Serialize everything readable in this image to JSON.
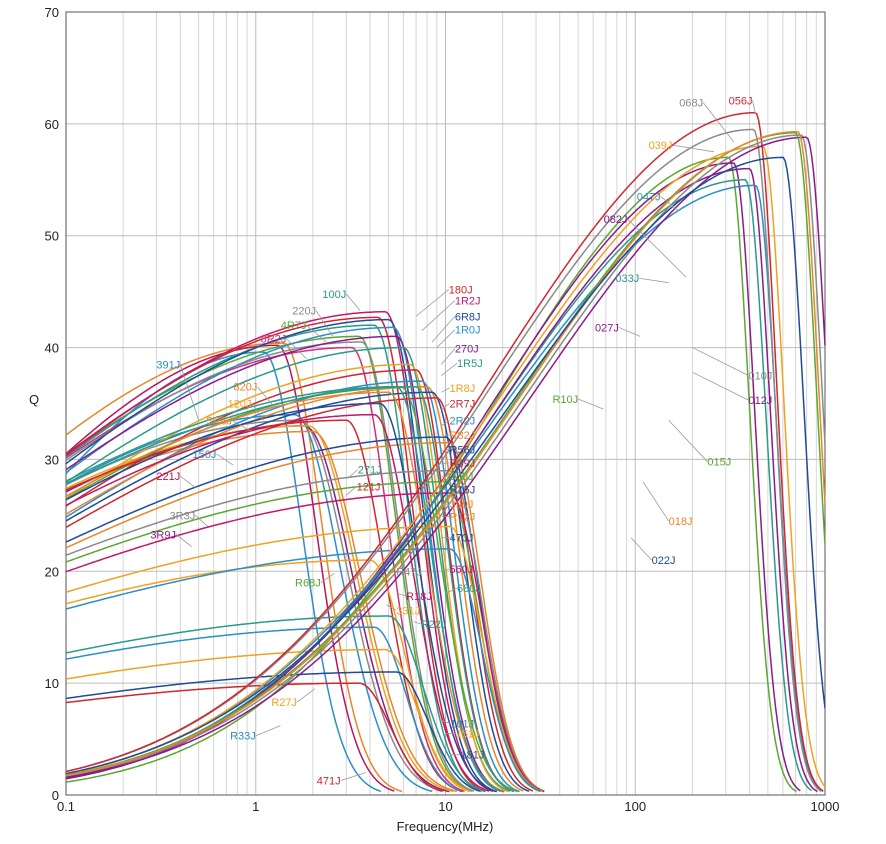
{
  "chart_data": {
    "type": "line",
    "title": "",
    "xlabel": "Frequency(MHz)",
    "ylabel": "Q",
    "x_scale": "log",
    "xlim": [
      0.1,
      1000
    ],
    "ylim": [
      0,
      70
    ],
    "grid": true,
    "x_tick_labels": [
      "0.1",
      "1",
      "10",
      "100",
      "1000"
    ],
    "x_tick_values": [
      0.1,
      1,
      10,
      100,
      1000
    ],
    "y_tick_labels": [
      "0",
      "10",
      "20",
      "30",
      "40",
      "50",
      "60",
      "70"
    ],
    "y_tick_values": [
      0,
      10,
      20,
      30,
      40,
      50,
      60,
      70
    ],
    "series": [
      {
        "name": "391J",
        "color": "#2a8fc9",
        "peak_x": 1.1,
        "peak_q": 39.6,
        "rise": 1.3,
        "fall": 5.0
      },
      {
        "name": "221J",
        "color": "#b8145a",
        "peak_x": 1.3,
        "peak_q": 40.2,
        "rise": 1.5,
        "fall": 5.0
      },
      {
        "name": "5R6J",
        "color": "#e9852b",
        "peak_x": 1.4,
        "peak_q": 40.4,
        "rise": 1.7,
        "fall": 5.0
      },
      {
        "name": "150J",
        "color": "#2a8fc9",
        "peak_x": 1.6,
        "peak_q": 34.0,
        "rise": 1.9,
        "fall": 4.2
      },
      {
        "name": "3R3J",
        "color": "#8a8a8a",
        "peak_x": 1.7,
        "peak_q": 33.5,
        "rise": 2.0,
        "fall": 4.0
      },
      {
        "name": "3R9J",
        "color": "#8b1a8b",
        "peak_x": 1.8,
        "peak_q": 33.0,
        "rise": 2.0,
        "fall": 4.0
      },
      {
        "name": "120J",
        "color": "#f0a21e",
        "peak_x": 1.9,
        "peak_q": 33.0,
        "rise": 2.1,
        "fall": 4.0
      },
      {
        "name": "820J",
        "color": "#e9852b",
        "peak_x": 2.0,
        "peak_q": 32.5,
        "rise": 2.2,
        "fall": 4.0
      },
      {
        "name": "8R2J",
        "color": "#d62e76",
        "peak_x": 3.2,
        "peak_q": 40.0,
        "rise": 2.0,
        "fall": 5.2
      },
      {
        "name": "4R7J",
        "color": "#5aa832",
        "peak_x": 3.5,
        "peak_q": 41.0,
        "rise": 2.0,
        "fall": 5.2
      },
      {
        "name": "220J",
        "color": "#8a8a8a",
        "peak_x": 3.6,
        "peak_q": 40.5,
        "rise": 2.0,
        "fall": 5.2
      },
      {
        "name": "100J",
        "color": "#2a9a8a",
        "peak_x": 4.2,
        "peak_q": 42.0,
        "rise": 2.0,
        "fall": 5.5
      },
      {
        "name": "180J",
        "color": "#d0262e",
        "peak_x": 4.4,
        "peak_q": 42.7,
        "rise": 2.0,
        "fall": 5.5
      },
      {
        "name": "1R2J",
        "color": "#c4186a",
        "peak_x": 4.8,
        "peak_q": 43.2,
        "rise": 2.0,
        "fall": 5.5
      },
      {
        "name": "6R8J",
        "color": "#1f4a9a",
        "peak_x": 5.0,
        "peak_q": 42.5,
        "rise": 2.0,
        "fall": 5.5
      },
      {
        "name": "1R0J",
        "color": "#2a8fc9",
        "peak_x": 5.3,
        "peak_q": 41.8,
        "rise": 2.0,
        "fall": 5.5
      },
      {
        "name": "270J",
        "color": "#8b1a8b",
        "peak_x": 5.5,
        "peak_q": 41.0,
        "rise": 2.1,
        "fall": 5.5
      },
      {
        "name": "1R5J",
        "color": "#2a9a8a",
        "peak_x": 6.0,
        "peak_q": 40.0,
        "rise": 2.1,
        "fall": 5.5
      },
      {
        "name": "1R8J",
        "color": "#f0a21e",
        "peak_x": 6.5,
        "peak_q": 38.5,
        "rise": 2.1,
        "fall": 6.0
      },
      {
        "name": "2R7J",
        "color": "#d0262e",
        "peak_x": 7.0,
        "peak_q": 38.0,
        "rise": 2.1,
        "fall": 6.0
      },
      {
        "name": "2R2J",
        "color": "#2a8fc9",
        "peak_x": 7.5,
        "peak_q": 37.0,
        "rise": 2.1,
        "fall": 6.0
      },
      {
        "name": "R82J",
        "color": "#e9852b",
        "peak_x": 8.0,
        "peak_q": 36.5,
        "rise": 2.2,
        "fall": 6.0
      },
      {
        "name": "R56J",
        "color": "#1f4a9a",
        "peak_x": 8.5,
        "peak_q": 36.0,
        "rise": 2.2,
        "fall": 6.0
      },
      {
        "name": "R39J",
        "color": "#d0262e",
        "peak_x": 9.0,
        "peak_q": 35.5,
        "rise": 2.2,
        "fall": 6.0
      },
      {
        "name": "330J",
        "color": "#5aa832",
        "peak_x": 5.8,
        "peak_q": 36.5,
        "rise": 2.2,
        "fall": 5.0
      },
      {
        "name": "R15J",
        "color": "#1f4a9a",
        "peak_x": 10.0,
        "peak_q": 32.0,
        "rise": 2.4,
        "fall": 6.0
      },
      {
        "name": "390J",
        "color": "#e9852b",
        "peak_x": 5.0,
        "peak_q": 36.0,
        "rise": 2.2,
        "fall": 5.0
      },
      {
        "name": "R12J",
        "color": "#e9852b",
        "peak_x": 10.5,
        "peak_q": 31.5,
        "rise": 2.4,
        "fall": 6.0
      },
      {
        "name": "470J",
        "color": "#1f4a9a",
        "peak_x": 4.5,
        "peak_q": 35.0,
        "rise": 2.2,
        "fall": 5.0
      },
      {
        "name": "560J",
        "color": "#c4186a",
        "peak_x": 4.2,
        "peak_q": 34.0,
        "rise": 2.2,
        "fall": 5.0
      },
      {
        "name": "271J",
        "color": "#2a9a8a",
        "peak_x": 5.5,
        "peak_q": 36.5,
        "rise": 2.4,
        "fall": 5.5
      },
      {
        "name": "121J",
        "color": "#d0262e",
        "peak_x": 3.0,
        "peak_q": 33.5,
        "rise": 2.3,
        "fall": 5.0
      },
      {
        "name": "680J",
        "color": "#2a9a8a",
        "peak_x": 7.0,
        "peak_q": 36.5,
        "rise": 2.5,
        "fall": 6.0
      },
      {
        "name": "R47J",
        "color": "#8a8a8a",
        "peak_x": 10.5,
        "peak_q": 29.0,
        "rise": 2.6,
        "fall": 6.0
      },
      {
        "name": "R68J",
        "color": "#5aa832",
        "peak_x": 10.0,
        "peak_q": 28.0,
        "rise": 2.6,
        "fall": 6.0
      },
      {
        "name": "R18J",
        "color": "#c4186a",
        "peak_x": 10.5,
        "peak_q": 27.0,
        "rise": 2.6,
        "fall": 6.0
      },
      {
        "name": "331J",
        "color": "#f0a21e",
        "peak_x": 4.0,
        "peak_q": 21.0,
        "rise": 2.5,
        "fall": 5.5
      },
      {
        "name": "R22J",
        "color": "#2a9a8a",
        "peak_x": 5.0,
        "peak_q": 16.0,
        "rise": 2.5,
        "fall": 5.5
      },
      {
        "name": "R27J",
        "color": "#f0a21e",
        "peak_x": 10.5,
        "peak_q": 24.0,
        "rise": 2.7,
        "fall": 6.0
      },
      {
        "name": "R33J",
        "color": "#2a8fc9",
        "peak_x": 10.5,
        "peak_q": 22.0,
        "rise": 2.7,
        "fall": 6.0
      },
      {
        "name": "101J",
        "color": "#2a8fc9",
        "peak_x": 4.2,
        "peak_q": 15.0,
        "rise": 2.5,
        "fall": 6.0
      },
      {
        "name": "151J",
        "color": "#f0a21e",
        "peak_x": 4.8,
        "peak_q": 13.0,
        "rise": 2.5,
        "fall": 6.0
      },
      {
        "name": "181J",
        "color": "#1f4a9a",
        "peak_x": 5.5,
        "peak_q": 11.0,
        "rise": 2.5,
        "fall": 6.0
      },
      {
        "name": "471J",
        "color": "#d0262e",
        "peak_x": 3.5,
        "peak_q": 10.0,
        "rise": 2.5,
        "fall": 6.0
      },
      {
        "name": "R10J",
        "color": "#5aa832",
        "peak_x": 310,
        "peak_q": 57.0,
        "rise": 1.25,
        "fall": 9.0
      },
      {
        "name": "027J",
        "color": "#8b1a8b",
        "peak_x": 330,
        "peak_q": 56.5,
        "rise": 1.3,
        "fall": 9.0
      },
      {
        "name": "033J",
        "color": "#2a9a8a",
        "peak_x": 380,
        "peak_q": 55.0,
        "rise": 1.35,
        "fall": 9.0
      },
      {
        "name": "082J",
        "color": "#8b1a8b",
        "peak_x": 400,
        "peak_q": 56.0,
        "rise": 1.35,
        "fall": 9.0
      },
      {
        "name": "047J",
        "color": "#2a8fc9",
        "peak_x": 430,
        "peak_q": 54.5,
        "rise": 1.4,
        "fall": 9.0
      },
      {
        "name": "039J",
        "color": "#f0a21e",
        "peak_x": 470,
        "peak_q": 58.0,
        "rise": 1.4,
        "fall": 9.0
      },
      {
        "name": "068J",
        "color": "#8a8a8a",
        "peak_x": 420,
        "peak_q": 59.5,
        "rise": 1.4,
        "fall": 9.0
      },
      {
        "name": "056J",
        "color": "#d0262e",
        "peak_x": 430,
        "peak_q": 61.0,
        "rise": 1.4,
        "fall": 9.0
      },
      {
        "name": "010J",
        "color": "#8a8a8a",
        "peak_x": 750,
        "peak_q": 59.0,
        "rise": 1.45,
        "fall": 9.0
      },
      {
        "name": "012J",
        "color": "#8b1a8b",
        "peak_x": 800,
        "peak_q": 58.8,
        "rise": 1.45,
        "fall": 9.0
      },
      {
        "name": "015J",
        "color": "#5aa832",
        "peak_x": 700,
        "peak_q": 59.2,
        "rise": 1.45,
        "fall": 9.0
      },
      {
        "name": "018J",
        "color": "#e9852b",
        "peak_x": 720,
        "peak_q": 59.3,
        "rise": 1.45,
        "fall": 9.0
      },
      {
        "name": "022J",
        "color": "#1f4a9a",
        "peak_x": 600,
        "peak_q": 57.0,
        "rise": 1.45,
        "fall": 9.0
      }
    ],
    "label_positions_note": "",
    "label_list": [
      {
        "name": "391J",
        "lx": 0.4,
        "ly": 38.5,
        "tx": 0.5,
        "ty": 33.5
      },
      {
        "name": "221J",
        "lx": 0.4,
        "ly": 28.5,
        "tx": 0.48,
        "ty": 27.5
      },
      {
        "name": "5R6J",
        "lx": 0.75,
        "ly": 33.5,
        "tx": 0.95,
        "ty": 32.5
      },
      {
        "name": "150J",
        "lx": 0.62,
        "ly": 30.5,
        "tx": 0.76,
        "ty": 29.5
      },
      {
        "name": "3R3J",
        "lx": 0.48,
        "ly": 25.0,
        "tx": 0.56,
        "ty": 24.0
      },
      {
        "name": "3R9J",
        "lx": 0.38,
        "ly": 23.3,
        "tx": 0.46,
        "ty": 22.2
      },
      {
        "name": "120J",
        "lx": 0.95,
        "ly": 35.0,
        "tx": 1.1,
        "ty": 33.5
      },
      {
        "name": "820J",
        "lx": 1.02,
        "ly": 36.5,
        "tx": 1.28,
        "ty": 34.5
      },
      {
        "name": "8R2J",
        "lx": 1.45,
        "ly": 40.8,
        "tx": 1.85,
        "ty": 39.0
      },
      {
        "name": "4R7J",
        "lx": 1.85,
        "ly": 42.0,
        "tx": 2.35,
        "ty": 40.5
      },
      {
        "name": "220J",
        "lx": 2.08,
        "ly": 43.3,
        "tx": 2.55,
        "ty": 41.0
      },
      {
        "name": "100J",
        "lx": 3.0,
        "ly": 44.8,
        "tx": 3.55,
        "ty": 43.3
      },
      {
        "name": "180J",
        "lx": 10.4,
        "ly": 45.2,
        "tx": 7.0,
        "ty": 42.8
      },
      {
        "name": "1R2J",
        "lx": 11.2,
        "ly": 44.2,
        "tx": 7.5,
        "ty": 41.5
      },
      {
        "name": "6R8J",
        "lx": 11.2,
        "ly": 42.8,
        "tx": 8.5,
        "ty": 40.5
      },
      {
        "name": "1R0J",
        "lx": 11.2,
        "ly": 41.6,
        "tx": 9.0,
        "ty": 40.0
      },
      {
        "name": "270J",
        "lx": 11.2,
        "ly": 39.9,
        "tx": 9.5,
        "ty": 38.5
      },
      {
        "name": "1R5J",
        "lx": 11.5,
        "ly": 38.6,
        "tx": 9.5,
        "ty": 37.5
      },
      {
        "name": "1R8J",
        "lx": 10.5,
        "ly": 36.4,
        "tx": 9.5,
        "ty": 36.0
      },
      {
        "name": "2R7J",
        "lx": 10.5,
        "ly": 35.0,
        "tx": 9.5,
        "ty": 34.5
      },
      {
        "name": "2R2J",
        "lx": 10.5,
        "ly": 33.5,
        "tx": 9.5,
        "ty": 33.0
      },
      {
        "name": "R82J",
        "lx": 10.5,
        "ly": 32.2,
        "tx": 9.5,
        "ty": 32.0
      },
      {
        "name": "R56J",
        "lx": 10.5,
        "ly": 30.9,
        "tx": 9.5,
        "ty": 30.8
      },
      {
        "name": "R39J",
        "lx": 10.5,
        "ly": 29.7,
        "tx": 9.5,
        "ty": 29.6
      },
      {
        "name": "330J",
        "lx": 10.5,
        "ly": 28.5,
        "tx": 9.5,
        "ty": 28.5
      },
      {
        "name": "R15J",
        "lx": 10.5,
        "ly": 27.3,
        "tx": 9.5,
        "ty": 27.3
      },
      {
        "name": "390J",
        "lx": 10.5,
        "ly": 26.0,
        "tx": 9.5,
        "ty": 26.0
      },
      {
        "name": "R12J",
        "lx": 10.5,
        "ly": 24.9,
        "tx": 9.5,
        "ty": 24.9
      },
      {
        "name": "470J",
        "lx": 10.5,
        "ly": 23.0,
        "tx": 9.5,
        "ty": 23.0
      },
      {
        "name": "560J",
        "lx": 10.5,
        "ly": 20.2,
        "tx": 9.5,
        "ty": 20.0
      },
      {
        "name": "271J",
        "lx": 3.45,
        "ly": 29.1,
        "tx": 3.05,
        "ty": 28.3
      },
      {
        "name": "121J",
        "lx": 3.4,
        "ly": 27.6,
        "tx": 3.0,
        "ty": 26.8
      },
      {
        "name": "680J",
        "lx": 11.5,
        "ly": 18.5,
        "tx": 10.0,
        "ty": 18.0
      },
      {
        "name": "R47J",
        "lx": 5.5,
        "ly": 20.0,
        "tx": 4.9,
        "ty": 19.7
      },
      {
        "name": "R68J",
        "lx": 2.2,
        "ly": 19.0,
        "tx": 2.6,
        "ty": 19.8
      },
      {
        "name": "R18J",
        "lx": 6.2,
        "ly": 17.8,
        "tx": 5.6,
        "ty": 18.0
      },
      {
        "name": "331J",
        "lx": 5.5,
        "ly": 16.5,
        "tx": 4.9,
        "ty": 17.0
      },
      {
        "name": "R22J",
        "lx": 7.4,
        "ly": 15.3,
        "tx": 6.8,
        "ty": 15.5
      },
      {
        "name": "R27J",
        "lx": 1.65,
        "ly": 8.3,
        "tx": 2.05,
        "ty": 9.5
      },
      {
        "name": "R33J",
        "lx": 1.0,
        "ly": 5.3,
        "tx": 1.35,
        "ty": 6.2
      },
      {
        "name": "101J",
        "lx": 10.6,
        "ly": 6.4,
        "tx": 9.3,
        "ty": 6.7
      },
      {
        "name": "151J",
        "lx": 11.3,
        "ly": 5.5,
        "tx": 10.0,
        "ty": 5.5
      },
      {
        "name": "181J",
        "lx": 12.0,
        "ly": 3.6,
        "tx": 10.5,
        "ty": 3.6
      },
      {
        "name": "471J",
        "lx": 2.8,
        "ly": 1.3,
        "tx": 3.8,
        "ty": 2.0
      },
      {
        "name": "R10J",
        "lx": 50.0,
        "ly": 35.4,
        "tx": 68,
        "ty": 34.5
      },
      {
        "name": "027J",
        "lx": 82.0,
        "ly": 41.8,
        "tx": 106,
        "ty": 41.0
      },
      {
        "name": "033J",
        "lx": 105.0,
        "ly": 46.2,
        "tx": 150,
        "ty": 45.8
      },
      {
        "name": "082J",
        "lx": 91.0,
        "ly": 51.5,
        "tx": 185,
        "ty": 46.3
      },
      {
        "name": "047J",
        "lx": 136.0,
        "ly": 53.5,
        "tx": 170,
        "ty": 52.2
      },
      {
        "name": "039J",
        "lx": 157.0,
        "ly": 58.1,
        "tx": 260,
        "ty": 57.5
      },
      {
        "name": "068J",
        "lx": 228.0,
        "ly": 61.9,
        "tx": 330,
        "ty": 58.4
      },
      {
        "name": "056J",
        "lx": 415.0,
        "ly": 62.1,
        "tx": 430,
        "ty": 60.9
      },
      {
        "name": "010J",
        "lx": 395.0,
        "ly": 37.5,
        "tx": 200,
        "ty": 40.0
      },
      {
        "name": "012J",
        "lx": 395.0,
        "ly": 35.3,
        "tx": 200,
        "ty": 37.8
      },
      {
        "name": "015J",
        "lx": 240.0,
        "ly": 29.8,
        "tx": 150,
        "ty": 33.5
      },
      {
        "name": "018J",
        "lx": 150.0,
        "ly": 24.5,
        "tx": 110,
        "ty": 28.0
      },
      {
        "name": "022J",
        "lx": 122.0,
        "ly": 21.0,
        "tx": 95,
        "ty": 23.0
      }
    ]
  }
}
